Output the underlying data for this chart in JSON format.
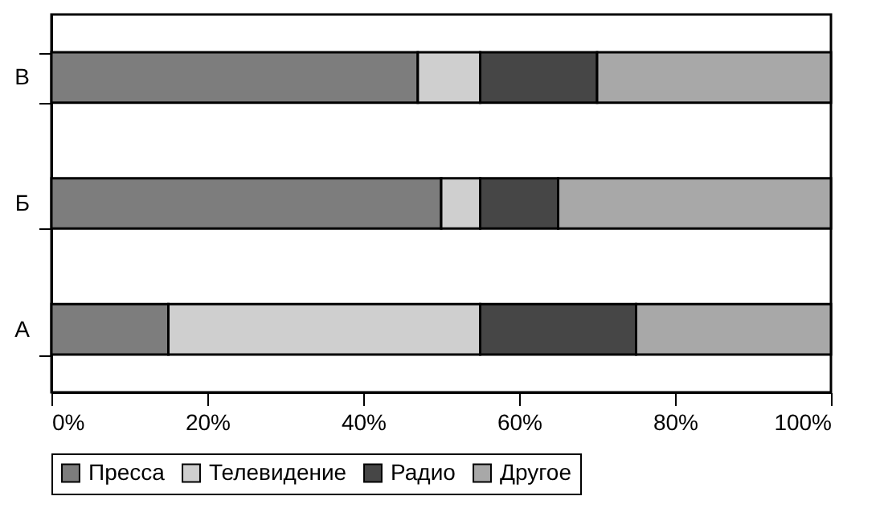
{
  "chart_data": {
    "type": "bar",
    "orientation": "horizontal",
    "stacked": true,
    "categories": [
      "В",
      "Б",
      "А"
    ],
    "series": [
      {
        "name": "Пресса",
        "color": "#7d7d7d",
        "values": [
          47,
          50,
          15
        ]
      },
      {
        "name": "Телевидение",
        "color": "#cfcfcf",
        "values": [
          8,
          5,
          40
        ]
      },
      {
        "name": "Радио",
        "color": "#464646",
        "values": [
          15,
          10,
          20
        ]
      },
      {
        "name": "Другое",
        "color": "#a8a8a8",
        "values": [
          30,
          35,
          25
        ]
      }
    ],
    "xlim": [
      0,
      100
    ],
    "xticks": [
      {
        "value": 0,
        "label": "0%"
      },
      {
        "value": 20,
        "label": "20%"
      },
      {
        "value": 40,
        "label": "40%"
      },
      {
        "value": 60,
        "label": "60%"
      },
      {
        "value": 80,
        "label": "80%"
      },
      {
        "value": 100,
        "label": "100%"
      }
    ],
    "grid": false,
    "legend": "bottom"
  }
}
